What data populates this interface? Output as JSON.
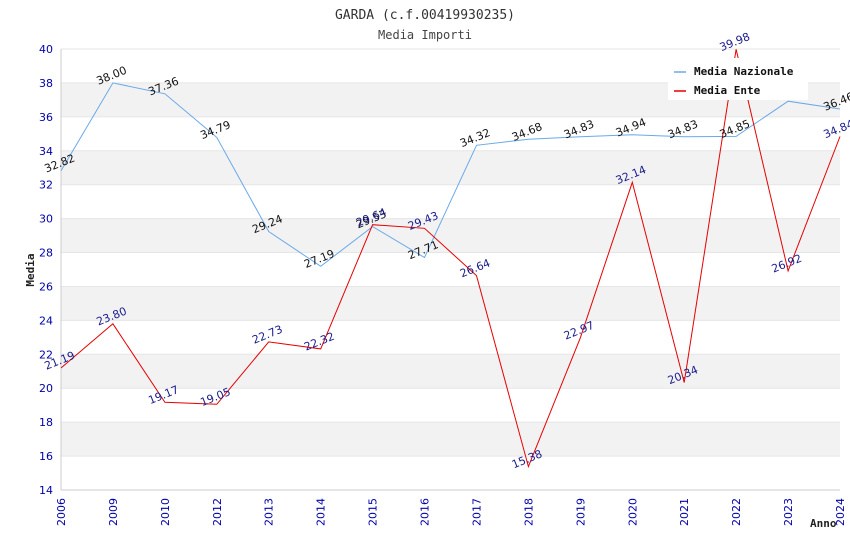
{
  "chart_data": {
    "type": "line",
    "title": "GARDA (c.f.00419930235)",
    "subtitle": "Media Importi",
    "xlabel": "Anno",
    "ylabel": "Media",
    "ylim": [
      14,
      40
    ],
    "ytick_step": 2,
    "categories": [
      "2006",
      "2009",
      "2010",
      "2012",
      "2013",
      "2014",
      "2015",
      "2016",
      "2017",
      "2018",
      "2019",
      "2020",
      "2021",
      "2022",
      "2023",
      "2024"
    ],
    "series": [
      {
        "name": "Media Nazionale",
        "color": "#6aa9e9",
        "values": [
          32.82,
          38.0,
          37.36,
          34.79,
          29.24,
          27.19,
          29.53,
          27.71,
          34.32,
          34.68,
          34.83,
          34.94,
          34.83,
          34.85,
          36.92,
          36.46
        ],
        "labels": [
          "32.82",
          "38.00",
          "37.36",
          "34.79",
          "29.24",
          "27.19",
          "29.53",
          "27.71",
          "34.32",
          "34.68",
          "34.83",
          "34.94",
          "34.83",
          "34.85",
          "",
          "36.46"
        ]
      },
      {
        "name": "Media Ente",
        "color": "#e60000",
        "values": [
          21.19,
          23.8,
          19.17,
          19.05,
          22.73,
          22.32,
          29.64,
          29.43,
          26.64,
          15.38,
          22.97,
          32.14,
          20.34,
          39.98,
          26.92,
          34.84
        ],
        "labels": [
          "21.19",
          "23.80",
          "19.17",
          "19.05",
          "22.73",
          "22.32",
          "29.64",
          "29.43",
          "26.64",
          "15.38",
          "22.97",
          "32.14",
          "20.34",
          "39.98",
          "26.92",
          "34.84"
        ]
      }
    ],
    "grid": true,
    "legend": "top-right"
  }
}
